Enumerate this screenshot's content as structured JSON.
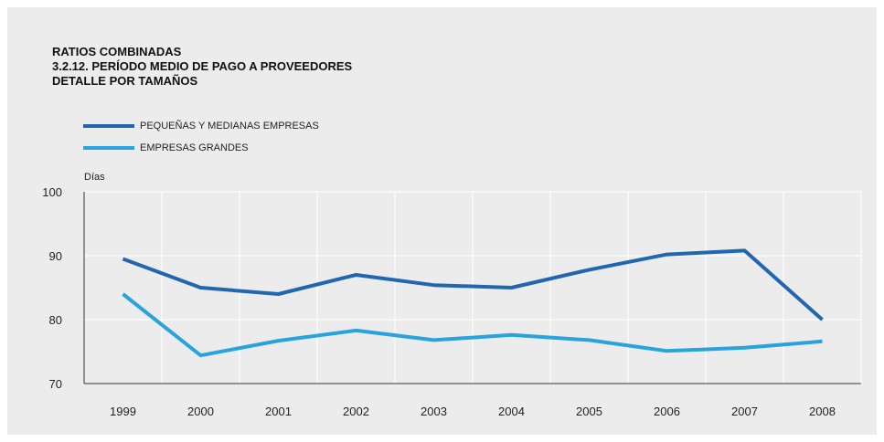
{
  "title_lines": [
    "RATIOS COMBINADAS",
    "3.2.12. PERÍODO MEDIO DE PAGO A PROVEEDORES",
    "DETALLE POR TAMAÑOS"
  ],
  "colors": {
    "background": "#ececec",
    "grid": "#ffffff",
    "axis": "#333333",
    "pymes": "#2266b0",
    "grandes": "#29a3dc"
  },
  "chart_data": {
    "type": "line",
    "title": "RATIOS COMBINADAS\n3.2.12. PERÍODO MEDIO DE PAGO A PROVEEDORES\nDETALLE POR TAMAÑOS",
    "ylabel": "Días",
    "xlabel": "",
    "categories": [
      "1999",
      "2000",
      "2001",
      "2002",
      "2003",
      "2004",
      "2005",
      "2006",
      "2007",
      "2008"
    ],
    "ylim": [
      70,
      100
    ],
    "yticks": [
      "70",
      "80",
      "90",
      "100"
    ],
    "grid": true,
    "legend_position": "top-left",
    "series": [
      {
        "name": "PEQUEÑAS Y MEDIANAS EMPRESAS",
        "color": "#2266b0",
        "values": [
          89.5,
          85.0,
          84.0,
          87.0,
          85.4,
          85.0,
          87.8,
          90.2,
          90.8,
          80.0
        ]
      },
      {
        "name": "EMPRESAS GRANDES",
        "color": "#29a3dc",
        "values": [
          84.0,
          74.4,
          76.7,
          78.3,
          76.8,
          77.6,
          76.8,
          75.1,
          75.6,
          76.6
        ]
      }
    ]
  }
}
